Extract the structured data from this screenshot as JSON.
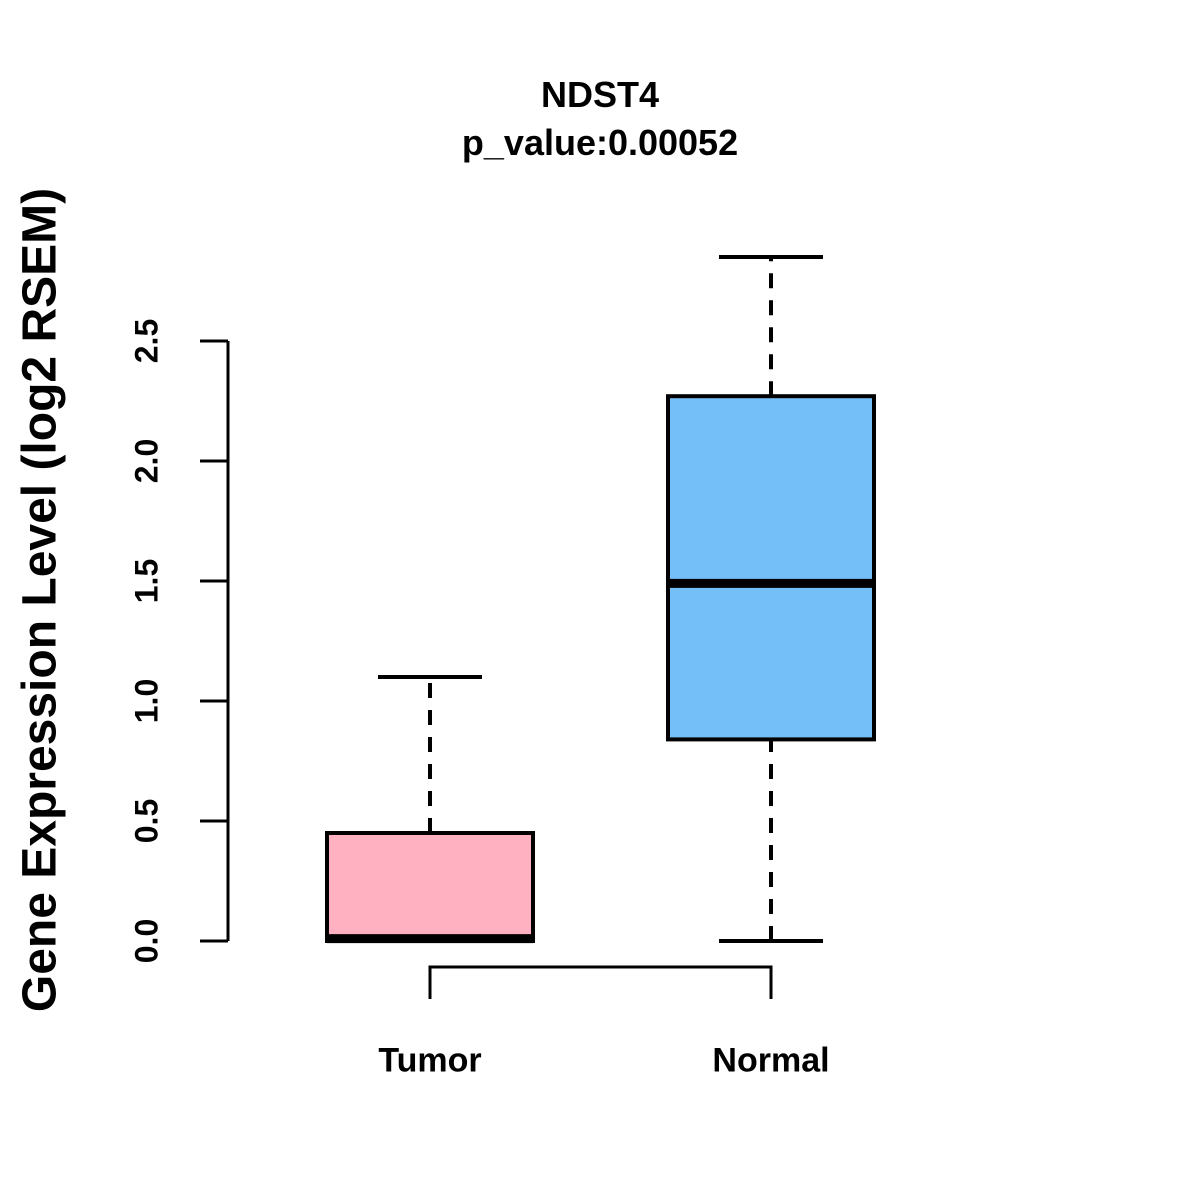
{
  "chart_data": {
    "type": "boxplot",
    "title": "NDST4",
    "subtitle": "p_value:0.00052",
    "ylabel": "Gene Expression Level (log2 RSEM)",
    "xlabel": "",
    "categories": [
      "Tumor",
      "Normal"
    ],
    "yticks": [
      0.0,
      0.5,
      1.0,
      1.5,
      2.0,
      2.5
    ],
    "ytick_labels": [
      "0.0",
      "0.5",
      "1.0",
      "1.5",
      "2.0",
      "2.5"
    ],
    "ylim": [
      0.0,
      2.85
    ],
    "grid": false,
    "legend": "none",
    "series": [
      {
        "name": "Tumor",
        "fill_color": "#FFB1C1",
        "whisker_low": 0.0,
        "q1": 0.0,
        "median": 0.01,
        "q3": 0.45,
        "whisker_high": 1.1
      },
      {
        "name": "Normal",
        "fill_color": "#74BFF7",
        "whisker_low": 0.0,
        "q1": 0.84,
        "median": 1.49,
        "q3": 2.27,
        "whisker_high": 2.85
      }
    ],
    "stroke_color": "#000000",
    "background_color": "#FFFFFF"
  }
}
